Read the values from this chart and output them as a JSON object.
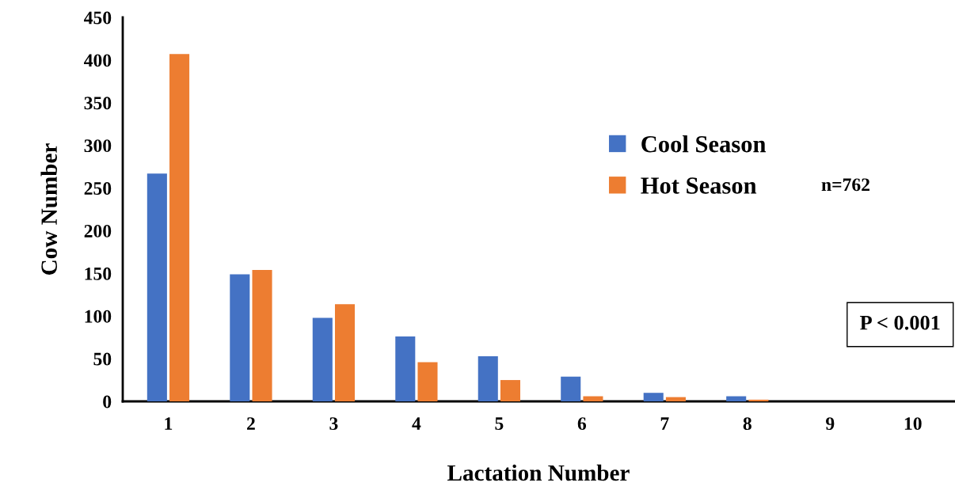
{
  "chart_data": {
    "type": "bar",
    "xlabel": "Lactation Number",
    "ylabel": "Cow Number",
    "categories": [
      "1",
      "2",
      "3",
      "4",
      "5",
      "6",
      "7",
      "8",
      "9",
      "10"
    ],
    "series": [
      {
        "name": "Cool Season",
        "color": "#4472c4",
        "values": [
          267,
          149,
          98,
          76,
          53,
          29,
          10,
          6,
          0,
          0
        ]
      },
      {
        "name": "Hot Season",
        "color": "#ed7d31",
        "values": [
          407,
          154,
          114,
          46,
          25,
          6,
          5,
          2,
          0,
          0
        ]
      }
    ],
    "ylim": [
      0,
      450
    ],
    "yticks": [
      0,
      50,
      100,
      150,
      200,
      250,
      300,
      350,
      400,
      450
    ],
    "grid": false,
    "legend": "top right",
    "annotations": [
      "n=762",
      "P < 0.001"
    ]
  }
}
